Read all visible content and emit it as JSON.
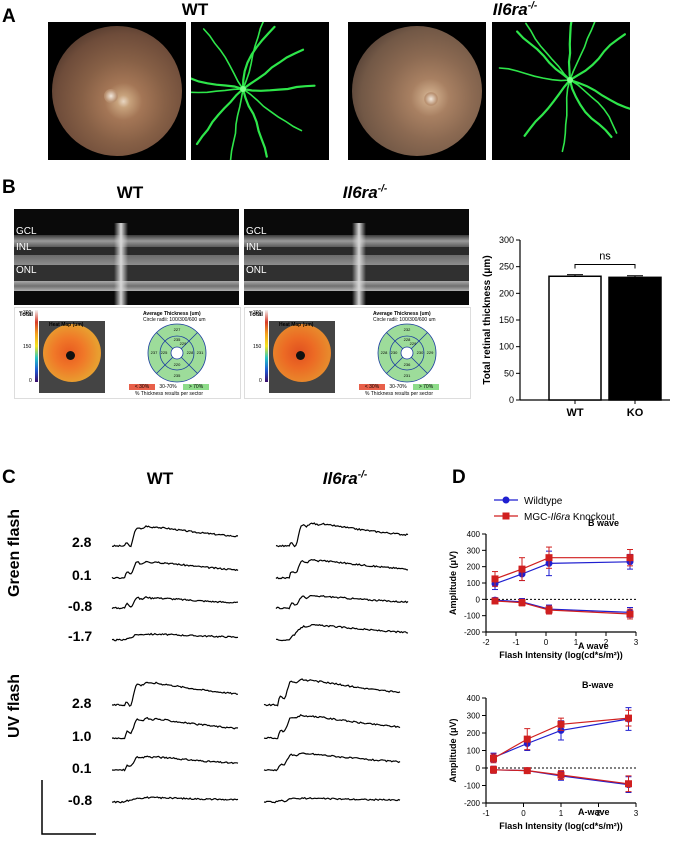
{
  "panel_a": {
    "label": "A",
    "wt_title": "WT",
    "ko_title_main": "Il6ra",
    "ko_title_sup": "-/-"
  },
  "panel_b": {
    "label": "B",
    "wt_title": "WT",
    "ko_title_main": "Il6ra",
    "ko_title_sup": "-/-",
    "layer_labels": [
      "GCL",
      "INL",
      "ONL"
    ],
    "wt_maps": {
      "total_label": "Total",
      "scale_ticks": [
        "300",
        "150",
        "0"
      ],
      "heatmap_title": "Heat Map (um)",
      "thickness_title": "Average Thickness (um)",
      "thickness_sub": "Circle radii: 100/300/600 um",
      "center": "232",
      "sectors": [
        "227",
        "235",
        "228",
        "231",
        "220",
        "235",
        "225",
        "237",
        "229"
      ],
      "legend": [
        "< 30%",
        "30-70%",
        "> 70%"
      ],
      "legend_caption": "% Thickness results per sector"
    },
    "ko_maps": {
      "total_label": "Total",
      "scale_ticks": [
        "300",
        "150",
        "0"
      ],
      "heatmap_title": "Heat Map (um)",
      "thickness_title": "Average Thickness (um)",
      "thickness_sub": "Circle radii: 100/300/600 um",
      "center": "230",
      "sectors": [
        "232",
        "228",
        "230",
        "229",
        "236",
        "231",
        "230",
        "228",
        "229"
      ],
      "legend": [
        "< 30%",
        "30-70%",
        "> 70%"
      ],
      "legend_caption": "% Thickness results per sector"
    },
    "significance": "ns"
  },
  "panel_c": {
    "label": "C",
    "wt_title": "WT",
    "ko_title_main": "Il6ra",
    "ko_title_sup": "-/-",
    "green_label": "Green flash",
    "uv_label": "UV flash",
    "green_intensities": [
      "2.8",
      "0.1",
      "-0.8",
      "-1.7"
    ],
    "uv_intensities": [
      "2.8",
      "1.0",
      "0.1",
      "-0.8"
    ]
  },
  "panel_d": {
    "label": "D",
    "legend_wt": "Wildtype",
    "legend_ko_prefix": "MGC-",
    "legend_ko_gene": "Il6ra",
    "legend_ko_suffix": " Knockout"
  },
  "chart_data": [
    {
      "type": "bar",
      "panel": "B",
      "categories": [
        "WT",
        "KO"
      ],
      "values": [
        232,
        230
      ],
      "errors": [
        3,
        3
      ],
      "colors": [
        "#ffffff",
        "#000000"
      ],
      "title": "",
      "xlabel": "",
      "ylabel": "Total retinal thickness (μm)",
      "ylim": [
        0,
        300
      ],
      "yticks": [
        0,
        50,
        100,
        150,
        200,
        250,
        300
      ],
      "annotation": "ns"
    },
    {
      "type": "line",
      "panel": "D-top",
      "xlabel": "Flash Intensity (log(cd*s/m²))",
      "ylabel": "Amplitude (μV)",
      "xlim": [
        -2,
        3
      ],
      "ylim": [
        -200,
        400
      ],
      "xticks": [
        -2,
        -1,
        0,
        1,
        2,
        3
      ],
      "yticks": [
        -200,
        -100,
        0,
        100,
        200,
        300,
        400
      ],
      "annotations": [
        "B wave",
        "A wave"
      ],
      "x": [
        -1.7,
        -0.8,
        0.1,
        2.8
      ],
      "series": [
        {
          "name": "Wildtype B wave",
          "color": "#1f1fd0",
          "marker": "circle",
          "values": [
            95,
            155,
            220,
            230
          ],
          "errors": [
            35,
            40,
            75,
            45
          ]
        },
        {
          "name": "MGC-Il6ra Knockout B wave",
          "color": "#d01f1f",
          "marker": "square",
          "values": [
            125,
            185,
            255,
            255
          ],
          "errors": [
            45,
            70,
            65,
            50
          ]
        },
        {
          "name": "Wildtype A wave",
          "color": "#1f1fd0",
          "marker": "circle",
          "values": [
            -5,
            -15,
            -60,
            -80
          ],
          "errors": [
            15,
            20,
            25,
            30
          ]
        },
        {
          "name": "MGC-Il6ra Knockout A wave",
          "color": "#d01f1f",
          "marker": "square",
          "values": [
            -10,
            -20,
            -65,
            -90
          ],
          "errors": [
            15,
            20,
            25,
            30
          ]
        }
      ]
    },
    {
      "type": "line",
      "panel": "D-bottom",
      "xlabel": "Flash Intensity (log(cd*s/m²))",
      "ylabel": "Amplitude (μV)",
      "xlim": [
        -1,
        3
      ],
      "ylim": [
        -200,
        400
      ],
      "xticks": [
        -1,
        0,
        1,
        2,
        3
      ],
      "yticks": [
        -200,
        -100,
        0,
        100,
        200,
        300,
        400
      ],
      "annotations": [
        "B-wave",
        "A-wave"
      ],
      "x": [
        -0.8,
        0.1,
        1.0,
        2.8
      ],
      "series": [
        {
          "name": "Wildtype B-wave",
          "color": "#1f1fd0",
          "marker": "circle",
          "values": [
            60,
            140,
            215,
            280
          ],
          "errors": [
            25,
            40,
            55,
            65
          ]
        },
        {
          "name": "MGC-Il6ra Knockout B-wave",
          "color": "#d01f1f",
          "marker": "square",
          "values": [
            55,
            165,
            250,
            285
          ],
          "errors": [
            25,
            60,
            35,
            45
          ]
        },
        {
          "name": "Wildtype A-wave",
          "color": "#1f1fd0",
          "marker": "circle",
          "values": [
            -10,
            -15,
            -45,
            -95
          ],
          "errors": [
            20,
            15,
            25,
            45
          ]
        },
        {
          "name": "MGC-Il6ra Knockout A-wave",
          "color": "#d01f1f",
          "marker": "square",
          "values": [
            -10,
            -15,
            -40,
            -90
          ],
          "errors": [
            20,
            15,
            25,
            45
          ]
        }
      ]
    }
  ]
}
